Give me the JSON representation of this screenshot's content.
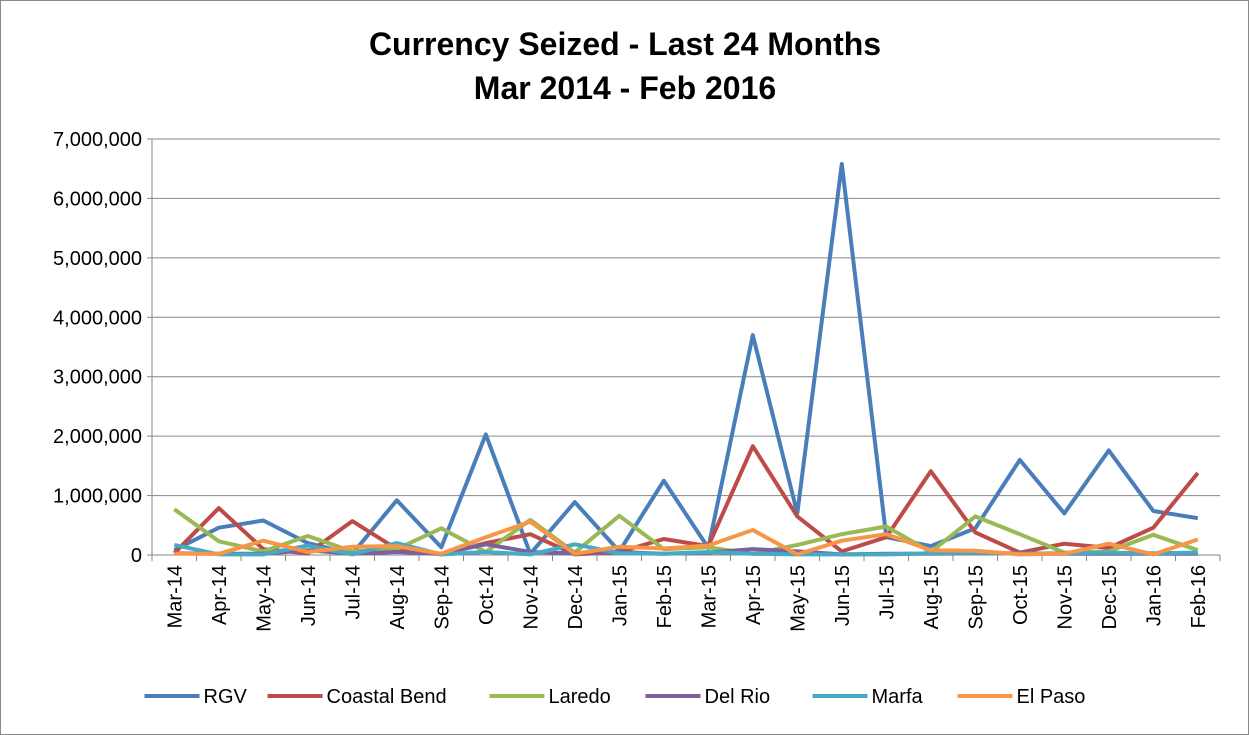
{
  "chart_data": {
    "type": "line",
    "title": "Currency Seized - Last 24 Months",
    "subtitle": "Mar 2014 - Feb 2016",
    "categories": [
      "Mar-14",
      "Apr-14",
      "May-14",
      "Jun-14",
      "Jul-14",
      "Aug-14",
      "Sep-14",
      "Oct-14",
      "Nov-14",
      "Dec-14",
      "Jan-15",
      "Feb-15",
      "Mar-15",
      "Apr-15",
      "May-15",
      "Jun-15",
      "Jul-15",
      "Aug-15",
      "Sep-15",
      "Oct-15",
      "Nov-15",
      "Dec-15",
      "Jan-16",
      "Feb-16"
    ],
    "ylim": [
      0,
      7000000
    ],
    "yticks": [
      0,
      {
        "value": 1000000,
        "label": "1,000,000"
      },
      {
        "value": 2000000,
        "label": "2,000,000"
      },
      {
        "value": 3000000,
        "label": "3,000,000"
      },
      {
        "value": 4000000,
        "label": "4,000,000"
      },
      {
        "value": 5000000,
        "label": "5,000,000"
      },
      {
        "value": 6000000,
        "label": "6,000,000"
      },
      {
        "value": 7000000,
        "label": "7,000,000"
      }
    ],
    "grid": true,
    "legend": "bottom",
    "series": [
      {
        "name": "RGV",
        "color": "#4a7ebb",
        "values": [
          80000,
          460000,
          580000,
          200000,
          20000,
          920000,
          130000,
          2030000,
          20000,
          890000,
          60000,
          1250000,
          120000,
          3700000,
          700000,
          6580000,
          300000,
          150000,
          450000,
          1600000,
          700000,
          1760000,
          740000,
          620000
        ]
      },
      {
        "name": "Coastal Bend",
        "color": "#be4b48",
        "values": [
          30000,
          790000,
          100000,
          30000,
          570000,
          100000,
          10000,
          200000,
          350000,
          10000,
          50000,
          270000,
          150000,
          1830000,
          650000,
          60000,
          300000,
          1410000,
          380000,
          40000,
          190000,
          120000,
          460000,
          1380000
        ]
      },
      {
        "name": "Laredo",
        "color": "#98b954",
        "values": [
          770000,
          230000,
          60000,
          320000,
          60000,
          100000,
          450000,
          50000,
          590000,
          40000,
          660000,
          100000,
          130000,
          20000,
          170000,
          350000,
          480000,
          50000,
          650000,
          350000,
          40000,
          60000,
          340000,
          80000
        ]
      },
      {
        "name": "Del Rio",
        "color": "#7d60a0",
        "values": [
          30000,
          20000,
          20000,
          80000,
          20000,
          50000,
          20000,
          180000,
          50000,
          30000,
          50000,
          20000,
          40000,
          100000,
          60000,
          10000,
          20000,
          20000,
          30000,
          30000,
          20000,
          20000,
          20000,
          20000
        ]
      },
      {
        "name": "Marfa",
        "color": "#46aac5",
        "values": [
          170000,
          10000,
          10000,
          160000,
          10000,
          200000,
          10000,
          50000,
          10000,
          180000,
          30000,
          20000,
          50000,
          20000,
          10000,
          10000,
          10000,
          30000,
          40000,
          20000,
          30000,
          40000,
          30000,
          40000
        ]
      },
      {
        "name": "El Paso",
        "color": "#f79646",
        "values": [
          20000,
          20000,
          240000,
          50000,
          140000,
          150000,
          20000,
          300000,
          560000,
          20000,
          140000,
          110000,
          160000,
          420000,
          10000,
          240000,
          350000,
          80000,
          70000,
          10000,
          20000,
          190000,
          10000,
          260000
        ]
      }
    ]
  }
}
